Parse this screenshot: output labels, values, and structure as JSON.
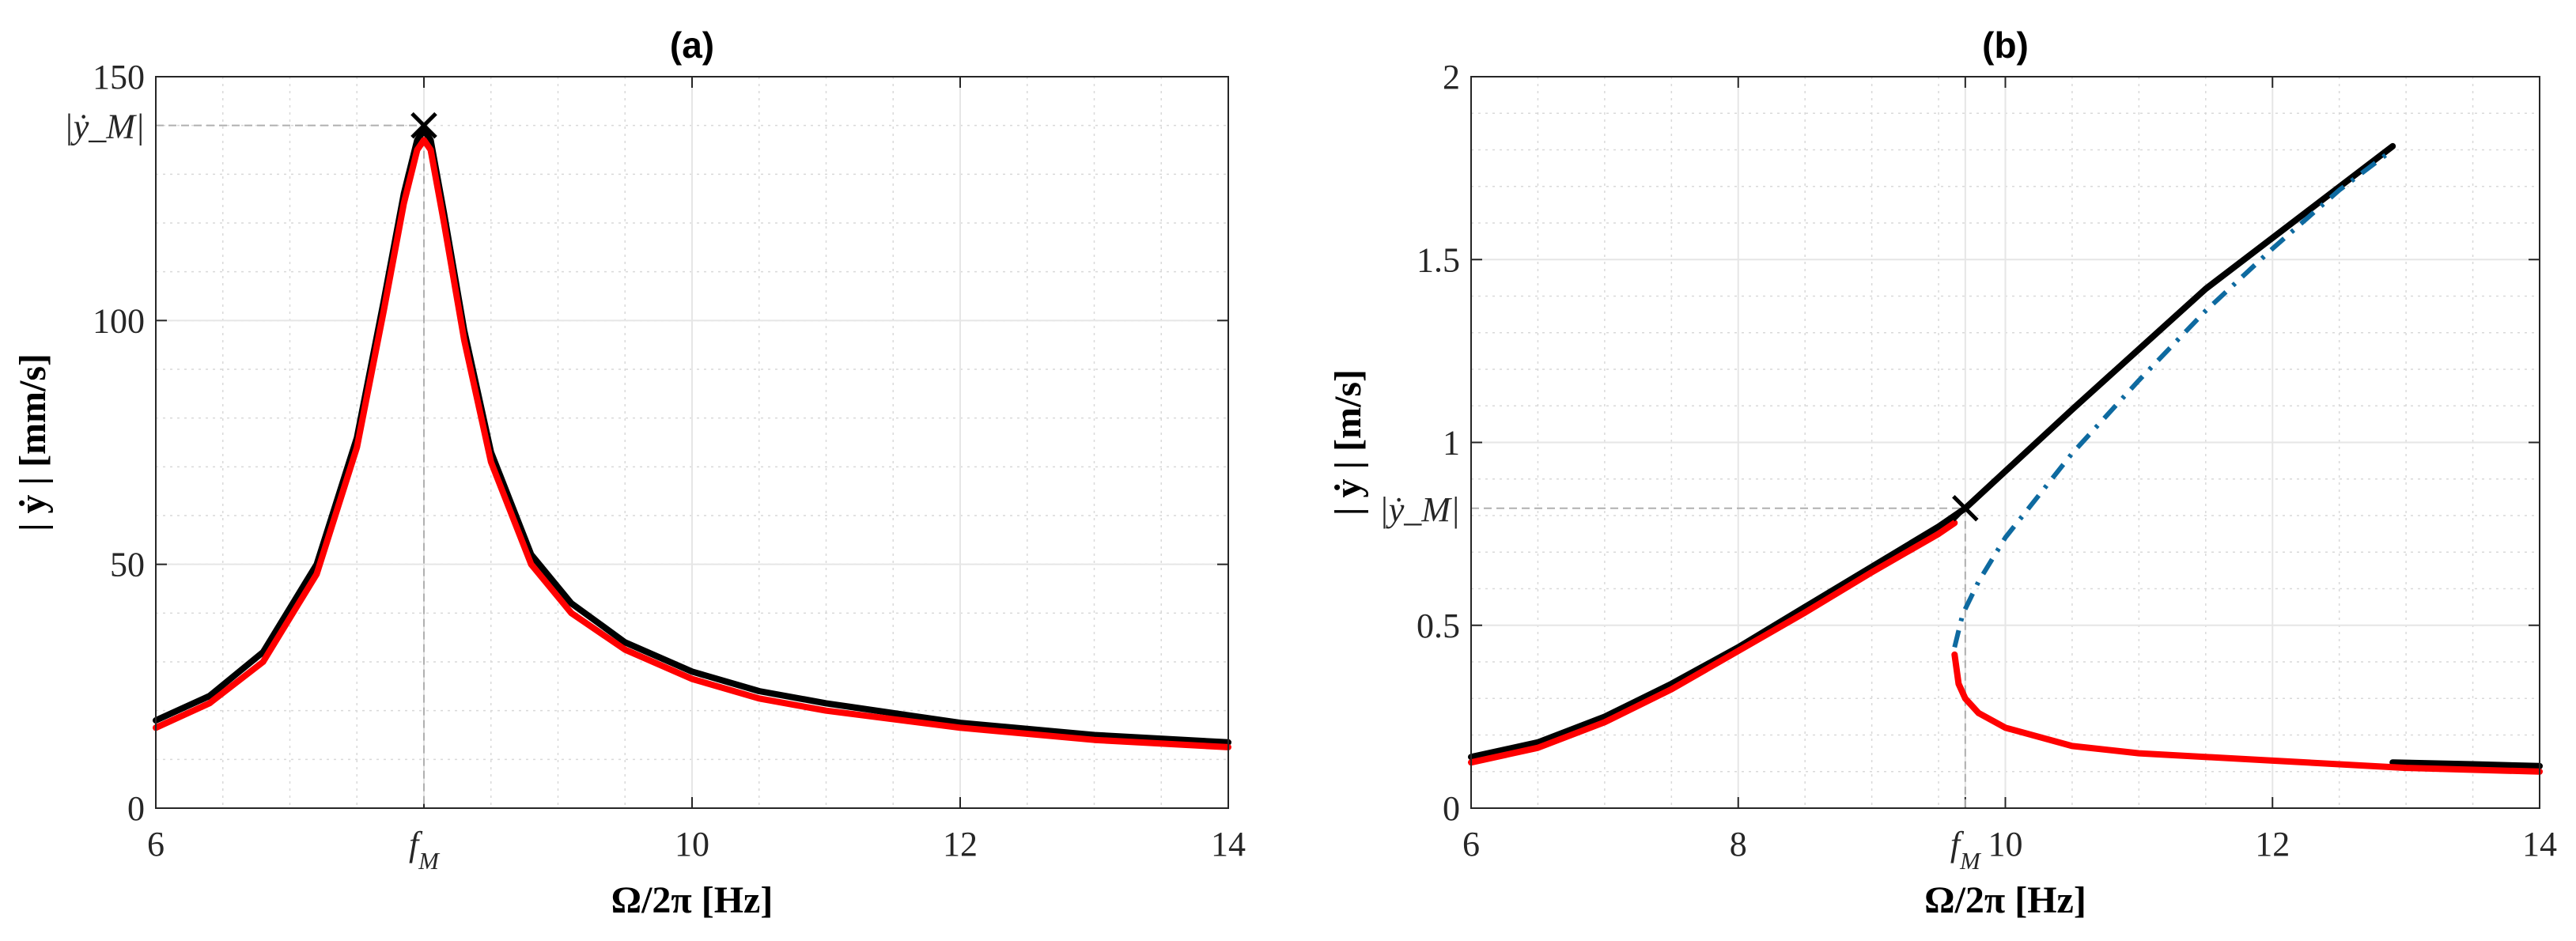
{
  "chart_data": [
    {
      "type": "line",
      "title": "(a)",
      "xlabel": "Ω/2π [Hz]",
      "ylabel": "| ẏ | [mm/s]",
      "xlim": [
        6,
        14
      ],
      "ylim": [
        0,
        150
      ],
      "grid": true,
      "xticks": [
        6,
        8,
        10,
        12,
        14
      ],
      "xtick_labels": [
        "6",
        "f_M",
        "10",
        "12",
        "14"
      ],
      "yticks": [
        0,
        50,
        100,
        150
      ],
      "ytick_labels": [
        "0",
        "50",
        "100",
        "150"
      ],
      "marker": {
        "label_x": "f_M",
        "label_y": "|ẏ_M|",
        "x": 8.0,
        "y": 140,
        "symbol": "×"
      },
      "series": [
        {
          "color": "#000000",
          "style": "solid",
          "x": [
            6.0,
            6.4,
            6.8,
            7.2,
            7.5,
            7.7,
            7.85,
            7.95,
            8.0,
            8.05,
            8.15,
            8.3,
            8.5,
            8.8,
            9.1,
            9.5,
            10.0,
            10.5,
            11.0,
            12.0,
            13.0,
            14.0
          ],
          "y": [
            18,
            23,
            32,
            50,
            76,
            104,
            126,
            137,
            139,
            137,
            122,
            98,
            73,
            52,
            42,
            34,
            28,
            24,
            21.5,
            17.5,
            15,
            13.5
          ]
        },
        {
          "color": "#ff0000",
          "style": "solid",
          "x": [
            6.0,
            6.4,
            6.8,
            7.2,
            7.5,
            7.7,
            7.85,
            7.95,
            8.0,
            8.05,
            8.15,
            8.3,
            8.5,
            8.8,
            9.1,
            9.5,
            10.0,
            10.5,
            11.0,
            12.0,
            13.0,
            14.0
          ],
          "y": [
            16.5,
            21.5,
            30,
            48,
            74,
            102,
            124,
            135,
            137,
            135,
            120,
            96,
            71,
            50,
            40,
            32.5,
            26.5,
            22.5,
            20,
            16.5,
            14,
            12.5
          ]
        }
      ]
    },
    {
      "type": "line",
      "title": "(b)",
      "xlabel": "Ω/2π [Hz]",
      "ylabel": "| ẏ | [m/s]",
      "xlim": [
        6,
        14
      ],
      "ylim": [
        0,
        2
      ],
      "grid": true,
      "xticks": [
        6,
        8,
        9.7,
        10,
        12,
        14
      ],
      "xtick_labels": [
        "6",
        "8",
        "f_M",
        "10",
        "12",
        "14"
      ],
      "yticks": [
        0,
        0.5,
        1,
        1.5,
        2
      ],
      "ytick_labels": [
        "0",
        "0.5",
        "1",
        "1.5",
        "2"
      ],
      "marker": {
        "label_x": "f_M",
        "label_y": "|ẏ_M|",
        "x": 9.7,
        "y": 0.82,
        "symbol": "×"
      },
      "series": [
        {
          "color": "#000000",
          "style": "solid",
          "x": [
            6.0,
            6.5,
            7.0,
            7.5,
            8.0,
            8.5,
            9.0,
            9.5,
            9.7,
            10.5,
            11.5,
            12.9
          ],
          "y": [
            0.14,
            0.18,
            0.25,
            0.34,
            0.44,
            0.55,
            0.66,
            0.77,
            0.82,
            1.09,
            1.42,
            1.81
          ]
        },
        {
          "color": "#000000",
          "style": "solid",
          "x": [
            12.9,
            13.5,
            14.0
          ],
          "y": [
            0.125,
            0.12,
            0.115
          ]
        },
        {
          "color": "#ff0000",
          "style": "solid",
          "x": [
            6.0,
            6.5,
            7.0,
            7.5,
            8.0,
            8.5,
            9.0,
            9.5,
            9.62
          ],
          "y": [
            0.125,
            0.165,
            0.235,
            0.325,
            0.43,
            0.535,
            0.645,
            0.75,
            0.78
          ]
        },
        {
          "color": "#ff0000",
          "style": "solid",
          "x": [
            9.62,
            9.65,
            9.7,
            9.8,
            10.0,
            10.5,
            11.0,
            12.0,
            13.0,
            14.0
          ],
          "y": [
            0.42,
            0.34,
            0.3,
            0.26,
            0.22,
            0.17,
            0.15,
            0.13,
            0.11,
            0.1
          ]
        },
        {
          "color": "#0e6aa0",
          "style": "dashdot",
          "x": [
            9.62,
            9.68,
            9.8,
            10.0,
            10.5,
            11.0,
            11.5,
            12.0,
            12.5,
            12.9
          ],
          "y": [
            0.44,
            0.53,
            0.62,
            0.74,
            0.97,
            1.17,
            1.36,
            1.53,
            1.69,
            1.8
          ]
        }
      ]
    }
  ]
}
